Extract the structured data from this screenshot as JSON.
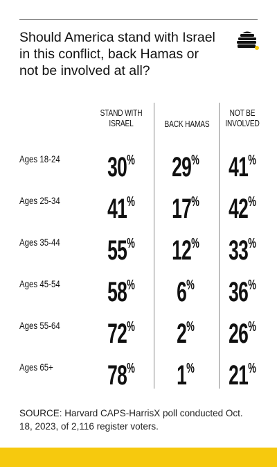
{
  "title": "Should America stand with Israel in this conflict, back Hamas or not be involved at all?",
  "logo_icon": "beehive-icon",
  "colors": {
    "accent": "#f6c90e",
    "text": "#111111",
    "rule": "#888888"
  },
  "chart_data": {
    "type": "table",
    "columns": [
      "STAND WITH\nISRAEL",
      "BACK HAMAS",
      "NOT BE\nINVOLVED"
    ],
    "rows": [
      {
        "label": "Ages 18-24",
        "values": [
          30,
          29,
          41
        ]
      },
      {
        "label": "Ages 25-34",
        "values": [
          41,
          17,
          42
        ]
      },
      {
        "label": "Ages 35-44",
        "values": [
          55,
          12,
          33
        ]
      },
      {
        "label": "Ages 45-54",
        "values": [
          58,
          6,
          36
        ]
      },
      {
        "label": "Ages 55-64",
        "values": [
          72,
          2,
          26
        ]
      },
      {
        "label": "Ages 65+",
        "values": [
          78,
          1,
          21
        ]
      }
    ],
    "unit": "%"
  },
  "source": "SOURCE: Harvard CAPS-HarrisX poll conducted Oct. 18, 2023, of 2,116 register voters."
}
